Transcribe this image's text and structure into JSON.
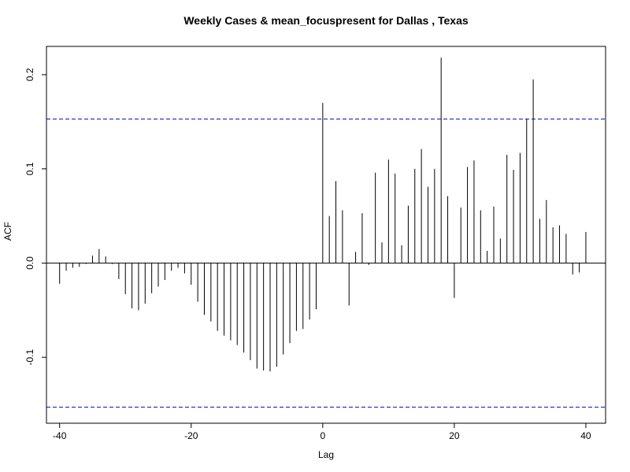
{
  "chart_data": {
    "type": "bar",
    "title": "Weekly Cases & mean_focuspresent for Dallas , Texas",
    "xlabel": "Lag",
    "ylabel": "ACF",
    "xlim": [
      -42,
      43
    ],
    "ylim": [
      -0.17,
      0.23
    ],
    "x_ticks": [
      -40,
      -20,
      0,
      20,
      40
    ],
    "x_tick_labels": [
      "-40",
      "-20",
      "0",
      "20",
      "40"
    ],
    "y_ticks": [
      -0.1,
      0.0,
      0.1,
      0.2
    ],
    "y_tick_labels": [
      "-0.1",
      "0.0",
      "0.1",
      "0.2"
    ],
    "confidence_bounds": [
      0.153,
      -0.153
    ],
    "grid": false,
    "colors": {
      "bars": "#000000",
      "bounds": "#0000CD",
      "zero_line": "#000000"
    },
    "lags": [
      -40,
      -39,
      -38,
      -37,
      -36,
      -35,
      -34,
      -33,
      -32,
      -31,
      -30,
      -29,
      -28,
      -27,
      -26,
      -25,
      -24,
      -23,
      -22,
      -21,
      -20,
      -19,
      -18,
      -17,
      -16,
      -15,
      -14,
      -13,
      -12,
      -11,
      -10,
      -9,
      -8,
      -7,
      -6,
      -5,
      -4,
      -3,
      -2,
      -1,
      0,
      1,
      2,
      3,
      4,
      5,
      6,
      7,
      8,
      9,
      10,
      11,
      12,
      13,
      14,
      15,
      16,
      17,
      18,
      19,
      20,
      21,
      22,
      23,
      24,
      25,
      26,
      27,
      28,
      29,
      30,
      31,
      32,
      33,
      34,
      35,
      36,
      37,
      38,
      39,
      40
    ],
    "values": [
      -0.022,
      -0.008,
      -0.005,
      -0.004,
      -0.001,
      0.008,
      0.015,
      0.007,
      -0.001,
      -0.017,
      -0.033,
      -0.048,
      -0.05,
      -0.043,
      -0.032,
      -0.025,
      -0.018,
      -0.008,
      -0.005,
      -0.011,
      -0.023,
      -0.041,
      -0.055,
      -0.062,
      -0.072,
      -0.077,
      -0.082,
      -0.087,
      -0.095,
      -0.103,
      -0.112,
      -0.114,
      -0.115,
      -0.11,
      -0.097,
      -0.085,
      -0.072,
      -0.07,
      -0.06,
      -0.049,
      0.17,
      0.05,
      0.087,
      0.056,
      -0.045,
      0.012,
      0.053,
      -0.002,
      0.096,
      0.022,
      0.11,
      0.095,
      0.019,
      0.061,
      0.1,
      0.121,
      0.081,
      0.1,
      0.218,
      0.071,
      -0.037,
      0.059,
      0.102,
      0.109,
      0.056,
      0.013,
      0.06,
      0.026,
      0.115,
      0.099,
      0.117,
      0.153,
      0.195,
      0.047,
      0.067,
      0.038,
      0.04,
      0.031,
      -0.012,
      -0.01,
      0.033
    ]
  }
}
